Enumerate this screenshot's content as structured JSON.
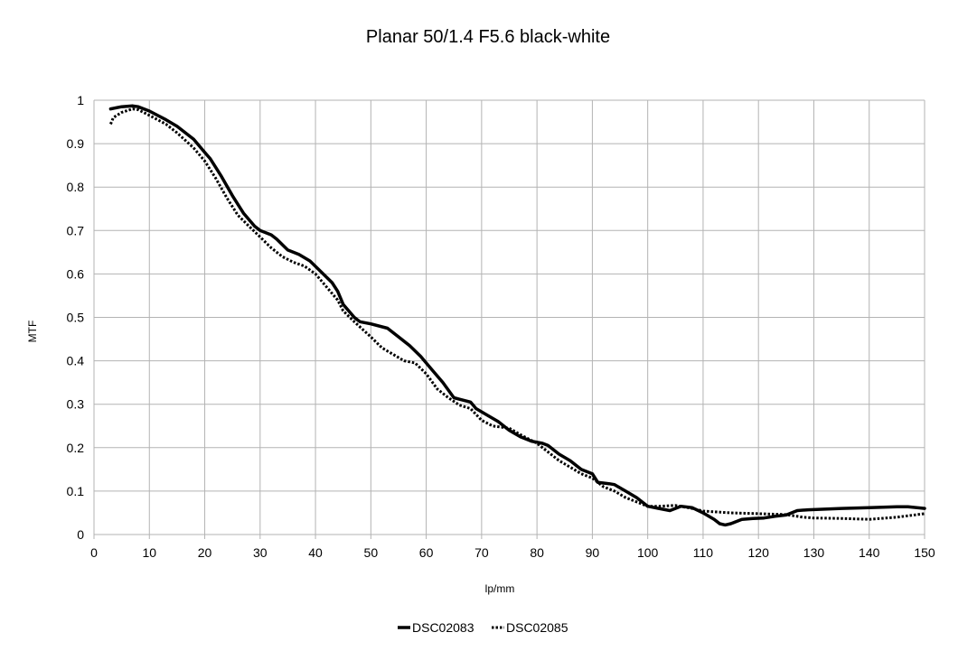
{
  "chart_data": {
    "type": "line",
    "title": "Planar 50/1.4 F5.6 black-white",
    "xlabel": "lp/mm",
    "ylabel": "MTF",
    "xlim": [
      0,
      150
    ],
    "ylim": [
      0,
      1
    ],
    "xticks": [
      "0",
      "10",
      "20",
      "30",
      "40",
      "50",
      "60",
      "70",
      "80",
      "90",
      "100",
      "110",
      "120",
      "130",
      "140",
      "150"
    ],
    "yticks": [
      "0",
      "0.1",
      "0.2",
      "0.3",
      "0.4",
      "0.5",
      "0.6",
      "0.7",
      "0.8",
      "0.9",
      "1"
    ],
    "grid": true,
    "legend_position": "bottom",
    "series": [
      {
        "name": "DSC02083",
        "style": "solid",
        "color": "#000000",
        "x": [
          3,
          5,
          7,
          8,
          10,
          13,
          15,
          18,
          20,
          21,
          23,
          25,
          27,
          29,
          30,
          32,
          33,
          35,
          37,
          39,
          41,
          43,
          44,
          45,
          47,
          48,
          50,
          53,
          55,
          57,
          59,
          61,
          63,
          65,
          68,
          69,
          71,
          73,
          75,
          77,
          79,
          81,
          82,
          84,
          86,
          88,
          90,
          91,
          93,
          94,
          96,
          98,
          100,
          102,
          104,
          106,
          108,
          110,
          112,
          113,
          114,
          115,
          117,
          119,
          121,
          123,
          125,
          127,
          129,
          131,
          135,
          140,
          145,
          147,
          150
        ],
        "y": [
          0.98,
          0.985,
          0.987,
          0.985,
          0.975,
          0.955,
          0.94,
          0.91,
          0.88,
          0.865,
          0.825,
          0.78,
          0.74,
          0.71,
          0.7,
          0.69,
          0.68,
          0.655,
          0.645,
          0.63,
          0.605,
          0.58,
          0.56,
          0.53,
          0.5,
          0.49,
          0.485,
          0.475,
          0.455,
          0.435,
          0.41,
          0.38,
          0.35,
          0.315,
          0.305,
          0.29,
          0.275,
          0.26,
          0.24,
          0.225,
          0.215,
          0.21,
          0.205,
          0.185,
          0.17,
          0.15,
          0.14,
          0.12,
          0.117,
          0.115,
          0.1,
          0.085,
          0.065,
          0.06,
          0.055,
          0.065,
          0.062,
          0.05,
          0.035,
          0.025,
          0.022,
          0.025,
          0.035,
          0.037,
          0.038,
          0.042,
          0.045,
          0.055,
          0.057,
          0.058,
          0.06,
          0.062,
          0.064,
          0.064,
          0.06
        ]
      },
      {
        "name": "DSC02085",
        "style": "dotted",
        "color": "#000000",
        "x": [
          3,
          3.5,
          5,
          7,
          8,
          10,
          13,
          15,
          18,
          20,
          22,
          24,
          26,
          28,
          30,
          32,
          34,
          36,
          38,
          40,
          42,
          44,
          45,
          47,
          50,
          52,
          54,
          56,
          58,
          60,
          62,
          64,
          66,
          68,
          70,
          72,
          75,
          77,
          80,
          82,
          84,
          86,
          88,
          90,
          92,
          94,
          96,
          98,
          100,
          102,
          105,
          108,
          110,
          115,
          120,
          125,
          128,
          130,
          135,
          140,
          145,
          150
        ],
        "y": [
          0.945,
          0.96,
          0.972,
          0.98,
          0.978,
          0.965,
          0.945,
          0.925,
          0.89,
          0.86,
          0.82,
          0.775,
          0.735,
          0.71,
          0.685,
          0.66,
          0.64,
          0.627,
          0.618,
          0.6,
          0.57,
          0.54,
          0.515,
          0.49,
          0.455,
          0.43,
          0.415,
          0.4,
          0.395,
          0.37,
          0.335,
          0.315,
          0.298,
          0.29,
          0.263,
          0.25,
          0.245,
          0.23,
          0.21,
          0.19,
          0.17,
          0.155,
          0.14,
          0.13,
          0.11,
          0.1,
          0.085,
          0.075,
          0.065,
          0.065,
          0.067,
          0.06,
          0.054,
          0.05,
          0.048,
          0.046,
          0.04,
          0.038,
          0.037,
          0.035,
          0.04,
          0.048
        ]
      }
    ]
  }
}
